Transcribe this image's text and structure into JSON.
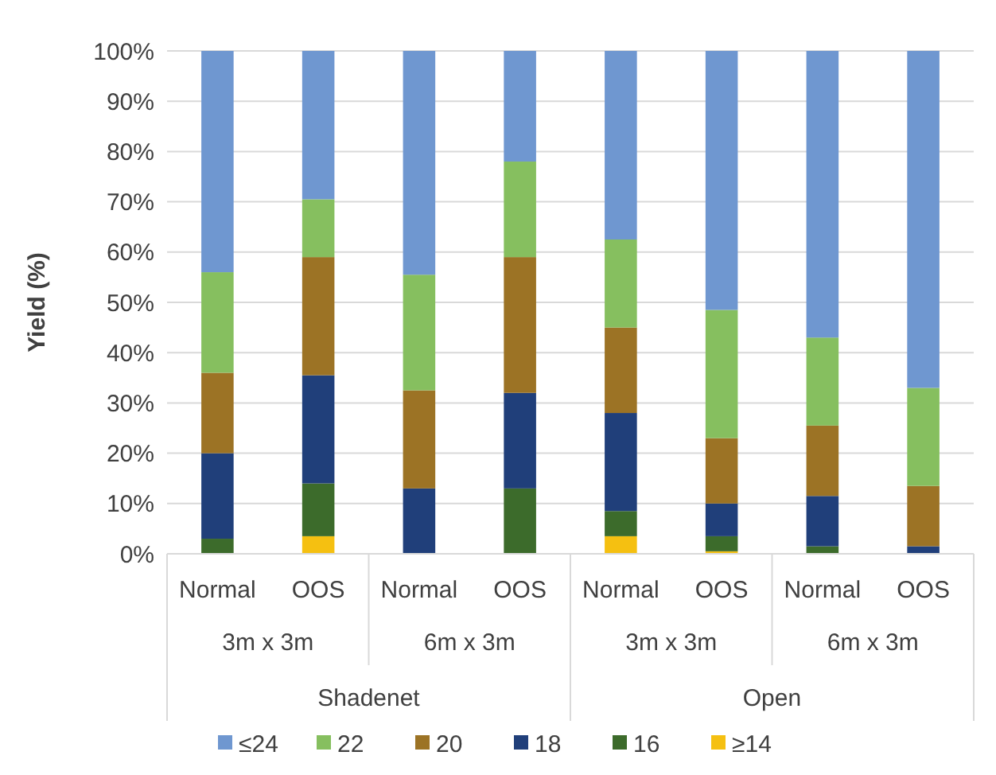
{
  "chart_data": {
    "type": "bar",
    "stacked": true,
    "ylabel": "Yield (%)",
    "categories": [
      "Normal",
      "OOS",
      "Normal",
      "OOS",
      "Normal",
      "OOS",
      "Normal",
      "OOS"
    ],
    "annotations": [
      "3m x 3m",
      "6m x 3m",
      "3m x 3m",
      "6m x 3m",
      "Shadenet",
      "Open"
    ],
    "series": [
      {
        "name": "≥14",
        "color": "#f5c011",
        "values": [
          0,
          3.5,
          0,
          0,
          3.5,
          0.5,
          0,
          0
        ]
      },
      {
        "name": "16",
        "color": "#3c6b2b",
        "values": [
          3,
          10.5,
          0,
          13,
          5,
          3,
          1.5,
          0
        ]
      },
      {
        "name": "18",
        "color": "#203f7a",
        "values": [
          17,
          21.5,
          13,
          19,
          19.5,
          6.5,
          10,
          1.5
        ]
      },
      {
        "name": "20",
        "color": "#9c7325",
        "values": [
          16,
          23.5,
          19.5,
          27,
          17,
          13,
          14,
          12
        ]
      },
      {
        "name": "22",
        "color": "#86bf5f",
        "values": [
          20,
          11.5,
          23,
          19,
          17.5,
          25.5,
          17.5,
          19.5
        ]
      },
      {
        "name": "≤24",
        "color": "#6f97d0",
        "values": [
          44,
          29.5,
          44.5,
          22,
          37.5,
          51.5,
          57,
          67
        ]
      }
    ],
    "ylim": [
      0,
      100
    ],
    "yticks": [
      {
        "value": 0,
        "label": "0%"
      },
      {
        "value": 10,
        "label": "10%"
      },
      {
        "value": 20,
        "label": "20%"
      },
      {
        "value": 30,
        "label": "30%"
      },
      {
        "value": 40,
        "label": "40%"
      },
      {
        "value": 50,
        "label": "50%"
      },
      {
        "value": 60,
        "label": "60%"
      },
      {
        "value": 70,
        "label": "70%"
      },
      {
        "value": 80,
        "label": "80%"
      },
      {
        "value": 90,
        "label": "90%"
      },
      {
        "value": 100,
        "label": "100%"
      }
    ],
    "grid": "y",
    "legend": "bottom"
  }
}
